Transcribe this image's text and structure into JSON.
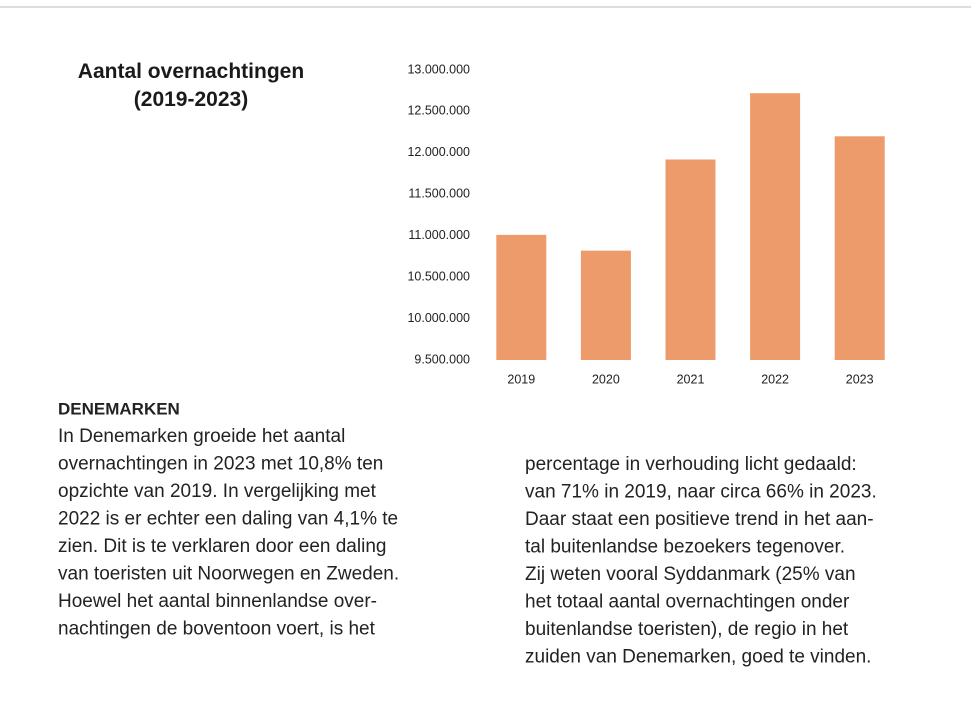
{
  "chart_data": {
    "type": "bar",
    "title": "Aantal overnachtingen (2019-2023)",
    "categories": [
      "2019",
      "2020",
      "2021",
      "2022",
      "2023"
    ],
    "values": [
      11010000,
      10820000,
      11920000,
      12720000,
      12200000
    ],
    "color": "#ee9b6c",
    "ylim": [
      9500000,
      13000000
    ],
    "yticks": [
      {
        "value": 9500000,
        "label": "9.500.000"
      },
      {
        "value": 10000000,
        "label": "10.000.000"
      },
      {
        "value": 10500000,
        "label": "10.500.000"
      },
      {
        "value": 11000000,
        "label": "11.000.000"
      },
      {
        "value": 11500000,
        "label": "11.500.000"
      },
      {
        "value": 12000000,
        "label": "12.000.000"
      },
      {
        "value": 12500000,
        "label": "12.500.000"
      },
      {
        "value": 13000000,
        "label": "13.000.000"
      }
    ],
    "grid": false
  },
  "article": {
    "heading": "DENEMARKEN",
    "columns": [
      [
        "In Denemarken groeide het aantal",
        "overnachtingen in 2023 met 10,8% ten",
        "opzichte van 2019. In vergelijking met",
        "2022 is er echter een daling van 4,1% te",
        "zien. Dit is te verklaren door een daling",
        "van toeristen uit Noorwegen en Zweden.",
        "Hoewel het aantal binnenlandse over-",
        "nachtingen de boventoon voert, is het"
      ],
      [
        "percentage in verhouding licht gedaald:",
        "van 71% in 2019, naar circa 66% in 2023.",
        "Daar staat een positieve trend in het aan-",
        "tal buitenlandse bezoekers tegenover.",
        "Zij weten vooral Syddanmark (25% van",
        "het totaal aantal overnachtingen onder",
        "buitenlandse toeristen), de regio in het",
        "zuiden van Denemarken, goed te vinden."
      ]
    ]
  }
}
